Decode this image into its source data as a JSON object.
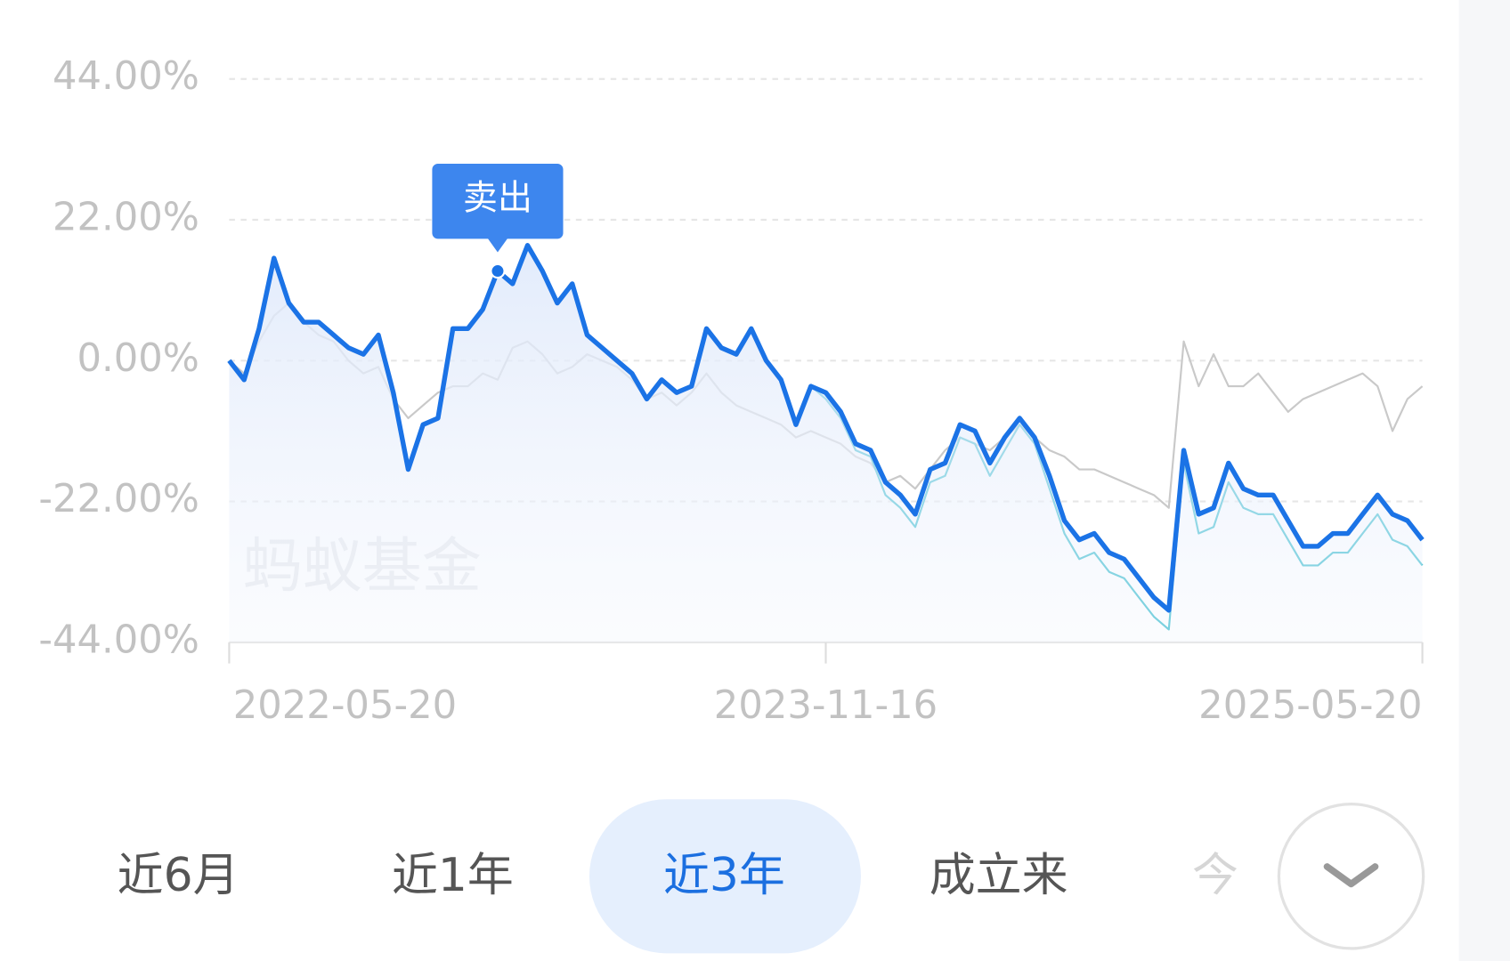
{
  "chart_data": {
    "type": "line",
    "categories": [
      "2022-05-20",
      null,
      null,
      null,
      null,
      null,
      null,
      null,
      null,
      null,
      null,
      null,
      null,
      null,
      null,
      null,
      null,
      null,
      null,
      null,
      null,
      null,
      null,
      null,
      null,
      null,
      null,
      null,
      null,
      null,
      null,
      null,
      null,
      null,
      null,
      null,
      null,
      null,
      null,
      null,
      "2023-11-16",
      null,
      null,
      null,
      null,
      null,
      null,
      null,
      null,
      null,
      null,
      null,
      null,
      null,
      null,
      null,
      null,
      null,
      null,
      null,
      null,
      null,
      null,
      null,
      null,
      null,
      null,
      null,
      null,
      null,
      null,
      null,
      null,
      null,
      null,
      null,
      null,
      null,
      null,
      null,
      "2025-05-20"
    ],
    "xtick_indices": [
      0,
      40,
      80
    ],
    "series": [
      {
        "color": "#c9c9c9",
        "values": [
          0,
          -2,
          3,
          7,
          9,
          6,
          4,
          3,
          0,
          -2,
          -1,
          -6,
          -9,
          -7,
          -5,
          -4,
          -4,
          -2,
          -3,
          2,
          3,
          1,
          -2,
          -1,
          1,
          0,
          -1,
          -3,
          -6,
          -5,
          -7,
          -5,
          -2,
          -5,
          -7,
          -8,
          -9,
          -10,
          -12,
          -11,
          -12,
          -13,
          -15,
          -16,
          -19,
          -18,
          -20,
          -17,
          -14,
          -12,
          -13,
          -14,
          -12,
          -10,
          -12,
          -14,
          -15,
          -17,
          -17,
          -18,
          -19,
          -20,
          -21,
          -23,
          3,
          -4,
          1,
          -4,
          -4,
          -2,
          -5,
          -8,
          -6,
          -5,
          -4,
          -3,
          -2,
          -4,
          -11,
          -6,
          -4
        ]
      },
      {
        "color": "#22b5c9",
        "values": [
          0,
          -3,
          5,
          16,
          9,
          6,
          6,
          4,
          2,
          1,
          4,
          -5,
          -17,
          -10,
          -9,
          5,
          5,
          8,
          14,
          12,
          18,
          14,
          9,
          12,
          4,
          2,
          0,
          -2,
          -6,
          -3,
          -5,
          -4,
          5,
          2,
          1,
          5,
          0,
          -3,
          -10,
          -4,
          -6,
          -9,
          -14,
          -15,
          -21,
          -23,
          -26,
          -19,
          -18,
          -12,
          -13,
          -18,
          -14,
          -10,
          -13,
          -20,
          -27,
          -31,
          -30,
          -33,
          -34,
          -37,
          -40,
          -42,
          -16,
          -27,
          -26,
          -19,
          -23,
          -24,
          -24,
          -28,
          -32,
          -32,
          -30,
          -30,
          -27,
          -24,
          -28,
          -29,
          -32
        ]
      },
      {
        "color": "#1b73e6",
        "values": [
          0,
          -3,
          5,
          16,
          9,
          6,
          6,
          4,
          2,
          1,
          4,
          -5,
          -17,
          -10,
          -9,
          5,
          5,
          8,
          14,
          12,
          18,
          14,
          9,
          12,
          4,
          2,
          0,
          -2,
          -6,
          -3,
          -5,
          -4,
          5,
          2,
          1,
          5,
          0,
          -3,
          -10,
          -4,
          -5,
          -8,
          -13,
          -14,
          -19,
          -21,
          -24,
          -17,
          -16,
          -10,
          -11,
          -16,
          -12,
          -9,
          -12,
          -18,
          -25,
          -28,
          -27,
          -30,
          -31,
          -34,
          -37,
          -39,
          -14,
          -24,
          -23,
          -16,
          -20,
          -21,
          -21,
          -25,
          -29,
          -29,
          -27,
          -27,
          -24,
          -21,
          -24,
          -25,
          -28
        ]
      }
    ],
    "ylim": [
      -44,
      44
    ],
    "yticks": [
      {
        "value": 44,
        "label": "44.00%"
      },
      {
        "value": 22,
        "label": "22.00%"
      },
      {
        "value": 0,
        "label": "0.00%"
      },
      {
        "value": -22,
        "label": "-22.00%"
      },
      {
        "value": -44,
        "label": "-44.00%"
      }
    ],
    "grid": true,
    "annotation": {
      "text": "卖出",
      "index": 18,
      "series": 2
    },
    "watermark": "蚂蚁基金"
  },
  "tabs": [
    "近6月",
    "近1年",
    "近3年",
    "成立来",
    "今"
  ],
  "selected_tab": 2
}
